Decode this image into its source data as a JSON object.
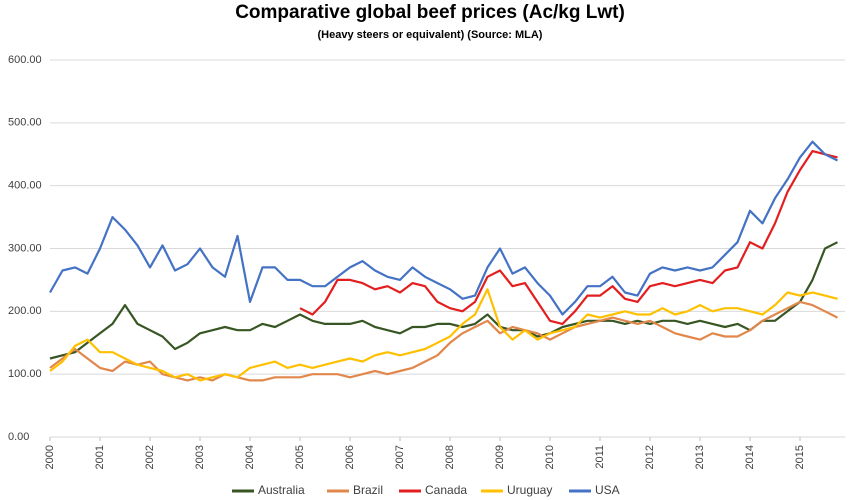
{
  "chart_data": {
    "type": "line",
    "title": "Comparative global beef prices (Ac/kg Lwt)",
    "subtitle": "(Heavy steers or equivalent)  (Source: MLA)",
    "x": [
      2000,
      2000.25,
      2000.5,
      2000.75,
      2001,
      2001.25,
      2001.5,
      2001.75,
      2002,
      2002.25,
      2002.5,
      2002.75,
      2003,
      2003.25,
      2003.5,
      2003.75,
      2004,
      2004.25,
      2004.5,
      2004.75,
      2005,
      2005.25,
      2005.5,
      2005.75,
      2006,
      2006.25,
      2006.5,
      2006.75,
      2007,
      2007.25,
      2007.5,
      2007.75,
      2008,
      2008.25,
      2008.5,
      2008.75,
      2009,
      2009.25,
      2009.5,
      2009.75,
      2010,
      2010.25,
      2010.5,
      2010.75,
      2011,
      2011.25,
      2011.5,
      2011.75,
      2012,
      2012.25,
      2012.5,
      2012.75,
      2013,
      2013.25,
      2013.5,
      2013.75,
      2014,
      2014.25,
      2014.5,
      2014.75,
      2015,
      2015.25,
      2015.5,
      2015.75
    ],
    "series": [
      {
        "name": "Australia",
        "color": "#375623",
        "values": [
          125,
          130,
          135,
          150,
          165,
          180,
          210,
          180,
          170,
          160,
          140,
          150,
          165,
          170,
          175,
          170,
          170,
          180,
          175,
          185,
          195,
          185,
          180,
          180,
          180,
          185,
          175,
          170,
          165,
          175,
          175,
          180,
          180,
          175,
          180,
          195,
          175,
          170,
          170,
          160,
          165,
          175,
          180,
          185,
          185,
          185,
          180,
          185,
          180,
          185,
          185,
          180,
          185,
          180,
          175,
          180,
          170,
          185,
          185,
          200,
          215,
          250,
          300,
          310
        ]
      },
      {
        "name": "Brazil",
        "color": "#E2874B",
        "values": [
          110,
          125,
          140,
          125,
          110,
          105,
          120,
          115,
          120,
          100,
          95,
          90,
          95,
          90,
          100,
          95,
          90,
          90,
          95,
          95,
          95,
          100,
          100,
          100,
          95,
          100,
          105,
          100,
          105,
          110,
          120,
          130,
          150,
          165,
          175,
          185,
          165,
          175,
          170,
          165,
          155,
          165,
          175,
          180,
          185,
          190,
          185,
          180,
          185,
          175,
          165,
          160,
          155,
          165,
          160,
          160,
          170,
          185,
          195,
          205,
          215,
          210,
          200,
          190
        ]
      },
      {
        "name": "Canada",
        "color": "#E31E1E",
        "values": [
          null,
          null,
          null,
          null,
          null,
          null,
          null,
          null,
          null,
          null,
          null,
          null,
          null,
          null,
          null,
          null,
          null,
          null,
          null,
          null,
          205,
          195,
          215,
          250,
          250,
          245,
          235,
          240,
          230,
          245,
          240,
          215,
          205,
          200,
          215,
          255,
          265,
          240,
          245,
          215,
          185,
          180,
          200,
          225,
          225,
          240,
          220,
          215,
          240,
          245,
          240,
          245,
          250,
          245,
          265,
          270,
          310,
          300,
          340,
          390,
          425,
          455,
          450,
          445
        ]
      },
      {
        "name": "Uruguay",
        "color": "#FFC000",
        "values": [
          105,
          120,
          145,
          155,
          135,
          135,
          125,
          115,
          110,
          105,
          95,
          100,
          90,
          95,
          100,
          95,
          110,
          115,
          120,
          110,
          115,
          110,
          115,
          120,
          125,
          120,
          130,
          135,
          130,
          135,
          140,
          150,
          160,
          180,
          195,
          235,
          175,
          155,
          170,
          155,
          165,
          170,
          175,
          195,
          190,
          195,
          200,
          195,
          195,
          205,
          195,
          200,
          210,
          200,
          205,
          205,
          200,
          195,
          210,
          230,
          225,
          230,
          225,
          220
        ]
      },
      {
        "name": "USA",
        "color": "#4472C4",
        "values": [
          230,
          265,
          270,
          260,
          300,
          350,
          330,
          305,
          270,
          305,
          265,
          275,
          300,
          270,
          255,
          320,
          215,
          270,
          270,
          250,
          250,
          240,
          240,
          255,
          270,
          280,
          265,
          255,
          250,
          270,
          255,
          245,
          235,
          220,
          225,
          270,
          300,
          260,
          270,
          245,
          225,
          195,
          215,
          240,
          240,
          255,
          230,
          225,
          260,
          270,
          265,
          270,
          265,
          270,
          290,
          310,
          360,
          340,
          380,
          410,
          445,
          470,
          450,
          440
        ]
      }
    ],
    "xlim": [
      2000,
      2015.9
    ],
    "ylim": [
      0,
      600
    ],
    "xticks": [
      2000,
      2001,
      2002,
      2003,
      2004,
      2005,
      2006,
      2007,
      2008,
      2009,
      2010,
      2011,
      2012,
      2013,
      2014,
      2015
    ],
    "yticks": [
      {
        "value": 0,
        "label": "0.00"
      },
      {
        "value": 100,
        "label": "100.00"
      },
      {
        "value": 200,
        "label": "200.00"
      },
      {
        "value": 300,
        "label": "300.00"
      },
      {
        "value": 400,
        "label": "400.00"
      },
      {
        "value": 500,
        "label": "500.00"
      },
      {
        "value": 600,
        "label": "600.00"
      }
    ],
    "grid": true,
    "legend": "bottom"
  }
}
